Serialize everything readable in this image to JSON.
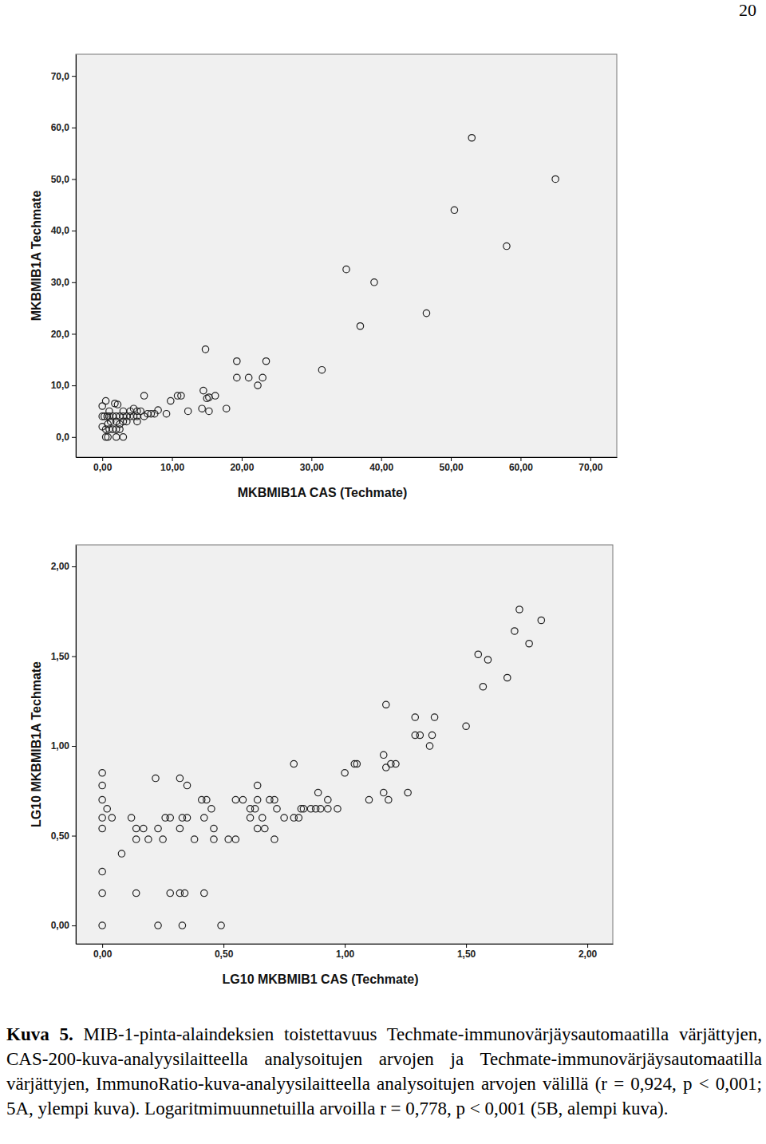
{
  "page_number": "20",
  "caption_label": "Kuva 5.",
  "caption_text": "MIB-1-pinta-alaindeksien toistettavuus Techmate-immunovärjäysautomaatilla värjättyjen, CAS-200-kuva-analyysilaitteella analysoitujen arvojen ja Techmate-immunovärjäysautomaatilla värjättyjen, ImmunoRatio-kuva-analyysilaitteella analysoitujen arvojen välillä (r = 0,924, p < 0,001; 5A, ylempi kuva). Logaritmimuunnetuilla arvoilla r = 0,778, p < 0,001 (5B, alempi kuva).",
  "chart_data": [
    {
      "type": "scatter",
      "x_label": "MKBMIB1A CAS (Techmate)",
      "y_label": "MKBMIB1A Techmate",
      "marker": "circle-open",
      "color": "#222222",
      "xlim": [
        -3.8,
        73.8
      ],
      "ylim": [
        -3.9,
        74.2
      ],
      "xticks": [
        {
          "value": 0,
          "label": "0,00"
        },
        {
          "value": 10,
          "label": "10,00"
        },
        {
          "value": 20,
          "label": "20,00"
        },
        {
          "value": 30,
          "label": "30,00"
        },
        {
          "value": 40,
          "label": "40,00"
        },
        {
          "value": 50,
          "label": "50,00"
        },
        {
          "value": 60,
          "label": "60,00"
        },
        {
          "value": 70,
          "label": "70,00"
        }
      ],
      "yticks": [
        {
          "value": 0,
          "label": "0,0"
        },
        {
          "value": 10,
          "label": "10,0"
        },
        {
          "value": 20,
          "label": "20,0"
        },
        {
          "value": 30,
          "label": "30,0"
        },
        {
          "value": 40,
          "label": "40,0"
        },
        {
          "value": 50,
          "label": "50,0"
        },
        {
          "value": 60,
          "label": "60,0"
        },
        {
          "value": 70,
          "label": "70,0"
        }
      ],
      "x": [
        53,
        65,
        50.5,
        58,
        35,
        39,
        46.5,
        37,
        31.5,
        14.8,
        19.3,
        23.5,
        19.3,
        21,
        23,
        22.3,
        6,
        10.8,
        11.3,
        14.5,
        15,
        15.3,
        16.2,
        9.8,
        17.8,
        14.3,
        12.3,
        15.3,
        9.2,
        8,
        7.5,
        0,
        0.5,
        0,
        0.3,
        0.7,
        1,
        1.5,
        2,
        2.5,
        3,
        3.5,
        4,
        4.5,
        5,
        6,
        6.5,
        7,
        1.8,
        2.2,
        1,
        3,
        4,
        4.5,
        5,
        5.5,
        0,
        0.5,
        1,
        1.5,
        2,
        2.5,
        0.5,
        0.8,
        2,
        3,
        1.2,
        2,
        3,
        3.5,
        5,
        0.8,
        2.5
      ],
      "values": [
        58,
        50,
        44,
        37,
        32.5,
        30,
        24,
        21.5,
        13,
        17,
        14.7,
        14.7,
        11.5,
        11.5,
        11.5,
        10,
        8,
        8,
        8,
        9,
        7.5,
        7.7,
        8,
        7,
        5.5,
        5.5,
        5,
        5,
        4.5,
        5.2,
        4.5,
        6,
        7,
        4,
        4,
        4,
        4,
        4,
        4,
        4,
        4,
        4,
        4,
        4,
        4,
        4,
        4.5,
        4.5,
        6.5,
        6.3,
        5,
        5,
        5,
        5.5,
        5,
        5,
        2,
        1.5,
        1.5,
        1.5,
        1.5,
        1.5,
        0,
        0,
        0,
        0,
        3,
        3,
        3,
        3,
        3,
        2.5,
        2.5
      ]
    },
    {
      "type": "scatter",
      "x_label": "LG10 MKBMIB1 CAS (Techmate)",
      "y_label": "LG10 MKBMIB1A Techmate",
      "marker": "circle-open",
      "color": "#222222",
      "xlim": [
        -0.109,
        2.105
      ],
      "ylim": [
        -0.102,
        2.12
      ],
      "xticks": [
        {
          "value": 0,
          "label": "0,00"
        },
        {
          "value": 0.5,
          "label": "0,50"
        },
        {
          "value": 1,
          "label": "1,00"
        },
        {
          "value": 1.5,
          "label": "1,50"
        },
        {
          "value": 2,
          "label": "2,00"
        }
      ],
      "yticks": [
        {
          "value": 0,
          "label": "0,00"
        },
        {
          "value": 0.5,
          "label": "0,50"
        },
        {
          "value": 1,
          "label": "1,00"
        },
        {
          "value": 1.5,
          "label": "1,50"
        },
        {
          "value": 2,
          "label": "2,00"
        }
      ],
      "x": [
        0,
        0,
        0,
        0,
        0,
        0,
        0,
        0,
        0.02,
        0.04,
        0.08,
        0.12,
        0.14,
        0.14,
        0.14,
        0.17,
        0.19,
        0.22,
        0.23,
        0.23,
        0.25,
        0.26,
        0.28,
        0.28,
        0.32,
        0.32,
        0.32,
        0.33,
        0.34,
        0.33,
        0.35,
        0.35,
        0.38,
        0.41,
        0.42,
        0.42,
        0.43,
        0.45,
        0.46,
        0.46,
        0.49,
        0.52,
        0.55,
        0.55,
        0.58,
        0.61,
        0.61,
        0.63,
        0.64,
        0.64,
        0.64,
        0.66,
        0.67,
        0.69,
        0.71,
        0.71,
        0.72,
        0.75,
        0.79,
        0.79,
        0.81,
        0.82,
        0.83,
        0.86,
        0.88,
        0.89,
        0.9,
        0.93,
        0.93,
        0.97,
        1.0,
        1.04,
        1.05,
        1.1,
        1.16,
        1.16,
        1.17,
        1.17,
        1.18,
        1.19,
        1.21,
        1.26,
        1.29,
        1.29,
        1.31,
        1.35,
        1.36,
        1.37,
        1.5,
        1.55,
        1.57,
        1.59,
        1.67,
        1.7,
        1.72,
        1.76,
        1.81
      ],
      "values": [
        0.85,
        0.78,
        0.7,
        0.6,
        0.54,
        0.3,
        0.18,
        0,
        0.65,
        0.6,
        0.4,
        0.6,
        0.54,
        0.48,
        0.18,
        0.54,
        0.48,
        0.82,
        0.54,
        0,
        0.48,
        0.6,
        0.6,
        0.18,
        0.82,
        0.54,
        0.18,
        0.6,
        0.18,
        0,
        0.78,
        0.6,
        0.48,
        0.7,
        0.6,
        0.18,
        0.7,
        0.65,
        0.54,
        0.48,
        0,
        0.48,
        0.7,
        0.48,
        0.7,
        0.6,
        0.65,
        0.65,
        0.78,
        0.7,
        0.54,
        0.6,
        0.54,
        0.7,
        0.7,
        0.48,
        0.65,
        0.6,
        0.9,
        0.6,
        0.6,
        0.65,
        0.65,
        0.65,
        0.65,
        0.74,
        0.65,
        0.7,
        0.65,
        0.65,
        0.85,
        0.9,
        0.9,
        0.7,
        0.74,
        0.95,
        1.23,
        0.88,
        0.7,
        0.9,
        0.9,
        0.74,
        1.16,
        1.06,
        1.06,
        1.0,
        1.06,
        1.16,
        1.11,
        1.51,
        1.33,
        1.48,
        1.38,
        1.64,
        1.76,
        1.57,
        1.7
      ]
    }
  ]
}
